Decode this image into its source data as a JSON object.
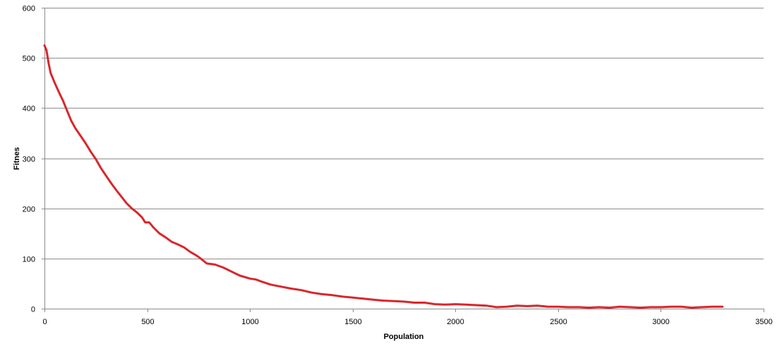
{
  "chart_data": {
    "type": "line",
    "title": "",
    "xlabel": "Population",
    "ylabel": "Fitnes",
    "xlim": [
      0,
      3500
    ],
    "ylim": [
      0,
      600
    ],
    "x_ticks": [
      0,
      500,
      1000,
      1500,
      2000,
      2500,
      3000,
      3500
    ],
    "y_ticks": [
      0,
      100,
      200,
      300,
      400,
      500,
      600
    ],
    "grid": "horizontal",
    "legend": "none",
    "series": [
      {
        "color": "#d9262b",
        "points": [
          [
            0,
            525
          ],
          [
            10,
            515
          ],
          [
            20,
            490
          ],
          [
            30,
            470
          ],
          [
            50,
            450
          ],
          [
            70,
            432
          ],
          [
            90,
            415
          ],
          [
            110,
            395
          ],
          [
            130,
            375
          ],
          [
            150,
            360
          ],
          [
            175,
            345
          ],
          [
            200,
            330
          ],
          [
            225,
            313
          ],
          [
            250,
            298
          ],
          [
            275,
            280
          ],
          [
            300,
            265
          ],
          [
            325,
            250
          ],
          [
            350,
            236
          ],
          [
            375,
            223
          ],
          [
            400,
            210
          ],
          [
            425,
            200
          ],
          [
            450,
            192
          ],
          [
            475,
            182
          ],
          [
            490,
            172
          ],
          [
            510,
            172
          ],
          [
            530,
            162
          ],
          [
            560,
            150
          ],
          [
            590,
            142
          ],
          [
            620,
            133
          ],
          [
            650,
            128
          ],
          [
            680,
            122
          ],
          [
            710,
            113
          ],
          [
            740,
            106
          ],
          [
            760,
            100
          ],
          [
            790,
            90
          ],
          [
            830,
            88
          ],
          [
            870,
            82
          ],
          [
            910,
            74
          ],
          [
            950,
            66
          ],
          [
            1000,
            60
          ],
          [
            1030,
            58
          ],
          [
            1050,
            55
          ],
          [
            1100,
            48
          ],
          [
            1150,
            44
          ],
          [
            1200,
            40
          ],
          [
            1250,
            37
          ],
          [
            1300,
            32
          ],
          [
            1350,
            29
          ],
          [
            1400,
            27
          ],
          [
            1450,
            24
          ],
          [
            1500,
            22
          ],
          [
            1550,
            20
          ],
          [
            1600,
            18
          ],
          [
            1650,
            16
          ],
          [
            1700,
            15
          ],
          [
            1750,
            14
          ],
          [
            1800,
            12
          ],
          [
            1850,
            12
          ],
          [
            1900,
            9
          ],
          [
            1950,
            8
          ],
          [
            2000,
            9
          ],
          [
            2050,
            8
          ],
          [
            2100,
            7
          ],
          [
            2150,
            6
          ],
          [
            2200,
            3
          ],
          [
            2250,
            4
          ],
          [
            2300,
            6
          ],
          [
            2350,
            5
          ],
          [
            2400,
            6
          ],
          [
            2450,
            4
          ],
          [
            2500,
            4
          ],
          [
            2550,
            3
          ],
          [
            2600,
            3
          ],
          [
            2650,
            2
          ],
          [
            2700,
            3
          ],
          [
            2750,
            2
          ],
          [
            2800,
            4
          ],
          [
            2850,
            3
          ],
          [
            2900,
            2
          ],
          [
            2950,
            3
          ],
          [
            3000,
            3
          ],
          [
            3050,
            4
          ],
          [
            3100,
            4
          ],
          [
            3150,
            2
          ],
          [
            3200,
            3
          ],
          [
            3250,
            4
          ],
          [
            3300,
            4
          ]
        ]
      }
    ]
  }
}
